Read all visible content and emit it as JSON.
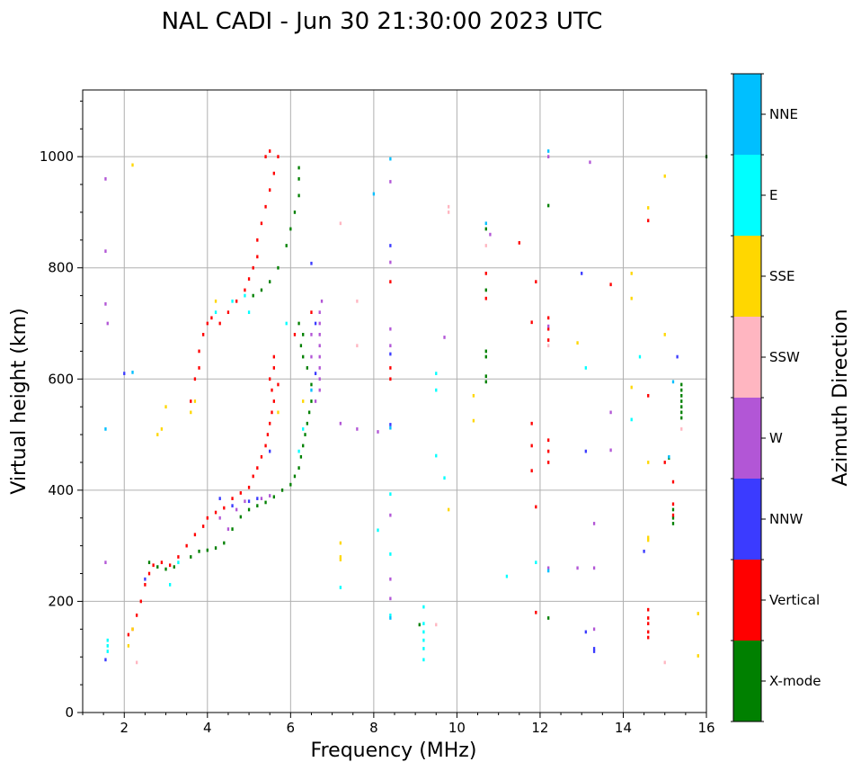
{
  "chart_data": {
    "type": "scatter",
    "title": "NAL CADI - Jun 30 21:30:00 2023 UTC",
    "xlabel": "Frequency (MHz)",
    "ylabel": "Virtual height (km)",
    "xlim": [
      1,
      16
    ],
    "ylim": [
      0,
      1120
    ],
    "grid": true,
    "x_major_ticks": [
      2,
      4,
      6,
      8,
      10,
      12,
      14,
      16
    ],
    "x_tick_labels": [
      "2",
      "4",
      "6",
      "8",
      "10",
      "12",
      "14",
      "16"
    ],
    "y_major_ticks": [
      0,
      200,
      400,
      600,
      800,
      1000
    ],
    "y_tick_labels": [
      "0",
      "200",
      "400",
      "600",
      "800",
      "1000"
    ],
    "bin_width_mhz": 0.05,
    "bin_height_km": 6,
    "colorbar": {
      "label": "Azimuth Direction",
      "categories": [
        {
          "name": "X-mode",
          "color": "#008000"
        },
        {
          "name": "Vertical",
          "color": "#ff0000"
        },
        {
          "name": "NNW",
          "color": "#3b3bff"
        },
        {
          "name": "W",
          "color": "#b256d6"
        },
        {
          "name": "SSW",
          "color": "#ffb6c1"
        },
        {
          "name": "SSE",
          "color": "#ffd700"
        },
        {
          "name": "E",
          "color": "#00ffff"
        },
        {
          "name": "NNE",
          "color": "#00bfff"
        }
      ]
    },
    "series": [
      {
        "name": "X-mode",
        "points": [
          [
            2.6,
            270
          ],
          [
            2.8,
            262
          ],
          [
            3.0,
            258
          ],
          [
            3.2,
            262
          ],
          [
            3.6,
            280
          ],
          [
            3.8,
            290
          ],
          [
            4.0,
            292
          ],
          [
            4.2,
            296
          ],
          [
            4.4,
            305
          ],
          [
            4.6,
            330
          ],
          [
            4.8,
            352
          ],
          [
            5.0,
            365
          ],
          [
            5.2,
            372
          ],
          [
            5.4,
            378
          ],
          [
            5.6,
            388
          ],
          [
            5.8,
            400
          ],
          [
            6.0,
            410
          ],
          [
            6.1,
            425
          ],
          [
            6.2,
            440
          ],
          [
            6.25,
            460
          ],
          [
            6.3,
            480
          ],
          [
            6.35,
            500
          ],
          [
            6.4,
            520
          ],
          [
            6.45,
            540
          ],
          [
            6.5,
            560
          ],
          [
            6.5,
            590
          ],
          [
            6.4,
            620
          ],
          [
            6.3,
            640
          ],
          [
            6.25,
            660
          ],
          [
            6.3,
            680
          ],
          [
            6.2,
            700
          ],
          [
            5.1,
            750
          ],
          [
            5.3,
            760
          ],
          [
            5.5,
            775
          ],
          [
            5.7,
            800
          ],
          [
            5.9,
            840
          ],
          [
            6.0,
            870
          ],
          [
            6.1,
            900
          ],
          [
            6.2,
            930
          ],
          [
            6.2,
            960
          ],
          [
            6.2,
            980
          ],
          [
            9.1,
            158
          ],
          [
            10.7,
            595
          ],
          [
            10.7,
            605
          ],
          [
            10.7,
            640
          ],
          [
            10.7,
            650
          ],
          [
            10.7,
            760
          ],
          [
            10.7,
            870
          ],
          [
            12.2,
            912
          ],
          [
            12.2,
            170
          ],
          [
            15.1,
            458
          ],
          [
            15.2,
            340
          ],
          [
            15.2,
            350
          ],
          [
            15.2,
            365
          ],
          [
            15.4,
            530
          ],
          [
            15.4,
            540
          ],
          [
            15.4,
            550
          ],
          [
            15.4,
            560
          ],
          [
            15.4,
            570
          ],
          [
            15.4,
            580
          ],
          [
            15.4,
            590
          ],
          [
            16.0,
            1000
          ]
        ]
      },
      {
        "name": "Vertical",
        "points": [
          [
            2.1,
            140
          ],
          [
            2.2,
            150
          ],
          [
            2.3,
            175
          ],
          [
            2.4,
            200
          ],
          [
            2.5,
            230
          ],
          [
            2.6,
            250
          ],
          [
            2.7,
            265
          ],
          [
            2.9,
            270
          ],
          [
            3.1,
            265
          ],
          [
            3.3,
            280
          ],
          [
            3.5,
            300
          ],
          [
            3.7,
            320
          ],
          [
            3.9,
            335
          ],
          [
            4.0,
            350
          ],
          [
            4.2,
            360
          ],
          [
            4.4,
            368
          ],
          [
            4.6,
            385
          ],
          [
            4.8,
            395
          ],
          [
            5.0,
            405
          ],
          [
            5.1,
            425
          ],
          [
            5.2,
            440
          ],
          [
            5.3,
            460
          ],
          [
            5.4,
            480
          ],
          [
            5.45,
            500
          ],
          [
            5.5,
            520
          ],
          [
            5.55,
            540
          ],
          [
            5.6,
            560
          ],
          [
            5.55,
            580
          ],
          [
            5.5,
            600
          ],
          [
            5.6,
            620
          ],
          [
            5.6,
            640
          ],
          [
            5.7,
            590
          ],
          [
            3.6,
            560
          ],
          [
            3.7,
            600
          ],
          [
            3.8,
            620
          ],
          [
            3.8,
            650
          ],
          [
            3.9,
            680
          ],
          [
            4.0,
            700
          ],
          [
            4.1,
            710
          ],
          [
            4.3,
            700
          ],
          [
            4.5,
            720
          ],
          [
            4.7,
            740
          ],
          [
            4.9,
            760
          ],
          [
            5.0,
            780
          ],
          [
            5.1,
            800
          ],
          [
            5.2,
            820
          ],
          [
            5.2,
            850
          ],
          [
            5.3,
            880
          ],
          [
            5.4,
            910
          ],
          [
            5.5,
            940
          ],
          [
            5.6,
            970
          ],
          [
            5.7,
            1000
          ],
          [
            5.4,
            1000
          ],
          [
            5.5,
            1010
          ],
          [
            6.1,
            680
          ],
          [
            6.5,
            720
          ],
          [
            8.4,
            600
          ],
          [
            8.4,
            620
          ],
          [
            8.4,
            775
          ],
          [
            10.7,
            745
          ],
          [
            10.7,
            790
          ],
          [
            11.5,
            845
          ],
          [
            11.8,
            520
          ],
          [
            11.8,
            480
          ],
          [
            11.8,
            435
          ],
          [
            11.9,
            370
          ],
          [
            11.9,
            180
          ],
          [
            11.8,
            702
          ],
          [
            11.9,
            775
          ],
          [
            12.2,
            450
          ],
          [
            12.2,
            470
          ],
          [
            12.2,
            490
          ],
          [
            12.2,
            670
          ],
          [
            12.2,
            690
          ],
          [
            12.2,
            710
          ],
          [
            13.7,
            770
          ],
          [
            14.6,
            570
          ],
          [
            14.6,
            885
          ],
          [
            14.6,
            135
          ],
          [
            14.6,
            145
          ],
          [
            14.6,
            160
          ],
          [
            14.6,
            170
          ],
          [
            14.6,
            185
          ],
          [
            15.0,
            450
          ],
          [
            15.2,
            415
          ],
          [
            15.2,
            375
          ],
          [
            15.2,
            355
          ]
        ]
      },
      {
        "name": "NNW",
        "points": [
          [
            1.55,
            95
          ],
          [
            2.5,
            240
          ],
          [
            4.3,
            385
          ],
          [
            4.6,
            372
          ],
          [
            5.0,
            380
          ],
          [
            5.2,
            385
          ],
          [
            5.5,
            470
          ],
          [
            6.5,
            808
          ],
          [
            6.6,
            610
          ],
          [
            6.6,
            700
          ],
          [
            8.4,
            518
          ],
          [
            8.4,
            645
          ],
          [
            8.4,
            840
          ],
          [
            13.0,
            790
          ],
          [
            13.1,
            470
          ],
          [
            13.1,
            145
          ],
          [
            13.3,
            115
          ],
          [
            13.3,
            110
          ],
          [
            14.5,
            290
          ],
          [
            15.3,
            640
          ],
          [
            2.0,
            610
          ]
        ]
      },
      {
        "name": "W",
        "points": [
          [
            1.55,
            960
          ],
          [
            1.55,
            830
          ],
          [
            1.55,
            735
          ],
          [
            1.6,
            700
          ],
          [
            1.55,
            270
          ],
          [
            4.3,
            350
          ],
          [
            4.5,
            330
          ],
          [
            4.7,
            365
          ],
          [
            4.9,
            380
          ],
          [
            5.3,
            385
          ],
          [
            5.5,
            390
          ],
          [
            6.6,
            560
          ],
          [
            6.7,
            580
          ],
          [
            6.7,
            600
          ],
          [
            6.7,
            620
          ],
          [
            6.7,
            640
          ],
          [
            6.7,
            660
          ],
          [
            6.7,
            680
          ],
          [
            6.7,
            700
          ],
          [
            6.7,
            720
          ],
          [
            6.75,
            740
          ],
          [
            6.5,
            640
          ],
          [
            6.5,
            680
          ],
          [
            8.4,
            690
          ],
          [
            8.4,
            660
          ],
          [
            8.4,
            810
          ],
          [
            8.4,
            955
          ],
          [
            8.4,
            355
          ],
          [
            8.4,
            240
          ],
          [
            8.4,
            205
          ],
          [
            9.7,
            675
          ],
          [
            10.8,
            860
          ],
          [
            12.2,
            1000
          ],
          [
            12.2,
            695
          ],
          [
            12.2,
            260
          ],
          [
            12.9,
            260
          ],
          [
            13.3,
            260
          ],
          [
            13.2,
            990
          ],
          [
            13.3,
            340
          ],
          [
            13.3,
            150
          ],
          [
            13.7,
            540
          ],
          [
            13.7,
            472
          ],
          [
            7.2,
            520
          ],
          [
            7.6,
            510
          ],
          [
            8.1,
            505
          ]
        ]
      },
      {
        "name": "SSW",
        "points": [
          [
            2.3,
            90
          ],
          [
            7.2,
            880
          ],
          [
            7.6,
            660
          ],
          [
            7.6,
            740
          ],
          [
            9.8,
            910
          ],
          [
            9.8,
            900
          ],
          [
            10.7,
            840
          ],
          [
            12.2,
            660
          ],
          [
            15.0,
            90
          ],
          [
            15.4,
            510
          ],
          [
            9.5,
            158
          ]
        ]
      },
      {
        "name": "SSE",
        "points": [
          [
            2.2,
            985
          ],
          [
            2.1,
            120
          ],
          [
            2.2,
            150
          ],
          [
            2.8,
            500
          ],
          [
            2.9,
            510
          ],
          [
            3.0,
            550
          ],
          [
            3.6,
            540
          ],
          [
            3.7,
            560
          ],
          [
            4.2,
            740
          ],
          [
            5.7,
            540
          ],
          [
            6.3,
            560
          ],
          [
            7.2,
            305
          ],
          [
            7.2,
            280
          ],
          [
            7.2,
            275
          ],
          [
            9.8,
            365
          ],
          [
            10.4,
            525
          ],
          [
            10.4,
            570
          ],
          [
            12.9,
            665
          ],
          [
            14.2,
            585
          ],
          [
            14.2,
            745
          ],
          [
            14.2,
            790
          ],
          [
            14.6,
            908
          ],
          [
            14.6,
            310
          ],
          [
            14.6,
            315
          ],
          [
            14.6,
            450
          ],
          [
            15.0,
            965
          ],
          [
            15.0,
            680
          ],
          [
            15.8,
            178
          ],
          [
            15.8,
            102
          ]
        ]
      },
      {
        "name": "E",
        "points": [
          [
            1.6,
            130
          ],
          [
            1.6,
            120
          ],
          [
            1.6,
            110
          ],
          [
            3.1,
            230
          ],
          [
            3.3,
            270
          ],
          [
            4.2,
            720
          ],
          [
            4.6,
            740
          ],
          [
            4.9,
            750
          ],
          [
            5.0,
            720
          ],
          [
            5.9,
            700
          ],
          [
            6.2,
            470
          ],
          [
            6.3,
            510
          ],
          [
            7.2,
            225
          ],
          [
            8.1,
            328
          ],
          [
            8.4,
            175
          ],
          [
            8.4,
            285
          ],
          [
            8.4,
            393
          ],
          [
            9.2,
            190
          ],
          [
            9.2,
            160
          ],
          [
            9.2,
            145
          ],
          [
            9.2,
            130
          ],
          [
            9.2,
            115
          ],
          [
            9.2,
            95
          ],
          [
            9.5,
            610
          ],
          [
            9.5,
            580
          ],
          [
            9.5,
            462
          ],
          [
            9.7,
            422
          ],
          [
            11.2,
            245
          ],
          [
            11.9,
            270
          ],
          [
            13.1,
            620
          ],
          [
            14.2,
            527
          ],
          [
            14.4,
            640
          ]
        ]
      },
      {
        "name": "NNE",
        "points": [
          [
            1.55,
            510
          ],
          [
            2.2,
            612
          ],
          [
            6.5,
            580
          ],
          [
            8.4,
            996
          ],
          [
            8.4,
            512
          ],
          [
            8.4,
            170
          ],
          [
            8.0,
            933
          ],
          [
            10.7,
            880
          ],
          [
            12.2,
            1010
          ],
          [
            12.2,
            255
          ],
          [
            15.2,
            595
          ],
          [
            15.1,
            460
          ]
        ]
      }
    ]
  }
}
